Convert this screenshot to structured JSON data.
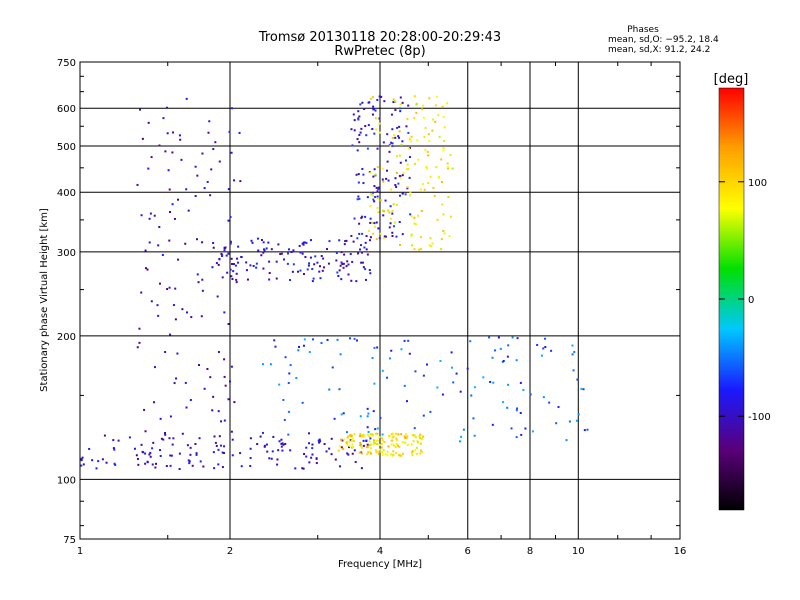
{
  "chart_data": {
    "type": "scatter",
    "title": "Tromsø 20130118 20:28:00-20:29:43",
    "subtitle": "RwPretec (8p)",
    "xlabel": "Frequency [MHz]",
    "ylabel": "Stationary phase Virtual Height [km]",
    "x_scale": "log",
    "y_scale": "log",
    "xlim": [
      1,
      16
    ],
    "ylim": [
      75,
      750
    ],
    "x_ticks": [
      1,
      2,
      4,
      6,
      8,
      10,
      16
    ],
    "y_ticks": [
      75,
      100,
      200,
      300,
      400,
      500,
      600,
      750
    ],
    "grid": true,
    "phase_header": "Phases",
    "phase_line1": "mean, sd,O: −95.2, 18.4",
    "phase_line2": "mean, sd,X:  91.2, 24.2",
    "colorbar": {
      "label": "[deg]",
      "range": [
        -180,
        180
      ],
      "ticks": [
        -100,
        0,
        100
      ],
      "colors": [
        "#000000",
        "#5a007a",
        "#1a1aff",
        "#00c8ff",
        "#00e000",
        "#ffff00",
        "#ffa000",
        "#ff0000"
      ]
    },
    "series": [
      {
        "kind": "O-trace low layer",
        "x_range": [
          1.0,
          3.8
        ],
        "y_range": [
          105,
          125
        ],
        "phase_deg": -100
      },
      {
        "kind": "O-trace vertical branch",
        "x_range": [
          1.3,
          2.1
        ],
        "y_range": [
          110,
          640
        ],
        "phase_deg": -105
      },
      {
        "kind": "O-trace F-layer",
        "x_range": [
          1.9,
          3.9
        ],
        "y_range": [
          260,
          320
        ],
        "phase_deg": -95
      },
      {
        "kind": "O-trace upper branch",
        "x_range": [
          3.5,
          4.6
        ],
        "y_range": [
          320,
          640
        ],
        "phase_deg": -90
      },
      {
        "kind": "X-trace F-layer",
        "x_range": [
          3.8,
          5.6
        ],
        "y_range": [
          300,
          640
        ],
        "phase_deg": 90
      },
      {
        "kind": "mid-height scatter",
        "x_range": [
          2.3,
          10.5
        ],
        "y_range": [
          120,
          200
        ],
        "phase_deg": -60
      },
      {
        "kind": "X-trace low layer",
        "x_range": [
          3.3,
          4.9
        ],
        "y_range": [
          112,
          125
        ],
        "phase_deg": 95
      }
    ]
  }
}
